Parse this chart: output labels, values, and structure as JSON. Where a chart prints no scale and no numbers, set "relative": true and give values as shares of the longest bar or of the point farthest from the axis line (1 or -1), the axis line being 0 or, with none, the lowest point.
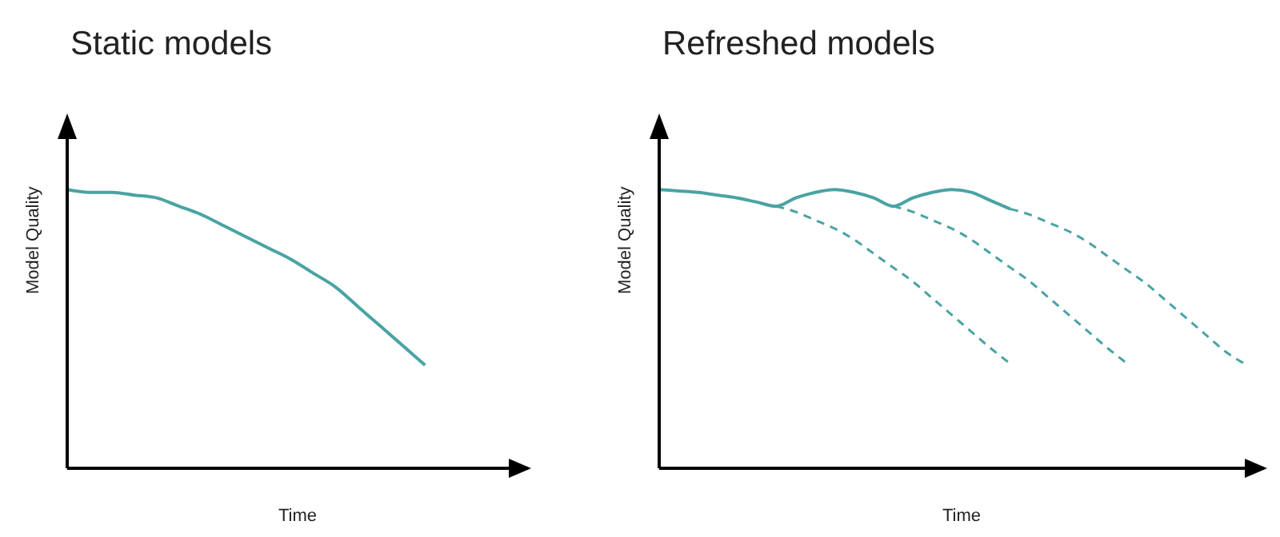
{
  "chart_data": [
    {
      "type": "line",
      "title": "Static models",
      "xlabel": "Time",
      "ylabel": "Model Quality",
      "relative": true,
      "tick_labels": false,
      "grid": false,
      "legend": false,
      "marker": "none",
      "categories": [
        null,
        null,
        null,
        null,
        null,
        null,
        null,
        null,
        null,
        null,
        null,
        null,
        null,
        null,
        null,
        null,
        null,
        null,
        null,
        null,
        null
      ],
      "series": [
        {
          "color": "#4aa3a3",
          "line_style": "solid",
          "values": [
            1.0,
            0.99,
            0.99,
            0.98,
            0.97,
            0.94,
            0.91,
            0.87,
            0.83,
            0.79,
            0.75,
            0.7,
            0.65,
            0.58,
            0.51,
            0.44,
            0.37,
            null,
            null,
            null,
            null
          ]
        }
      ]
    },
    {
      "type": "line",
      "title": "Refreshed models",
      "xlabel": "Time",
      "ylabel": "Model Quality",
      "relative": true,
      "tick_labels": false,
      "grid": false,
      "legend": false,
      "marker": "none",
      "categories": [
        null,
        null,
        null,
        null,
        null,
        null,
        null,
        null,
        null,
        null,
        null,
        null,
        null,
        null,
        null,
        null,
        null,
        null,
        null,
        null,
        null,
        null,
        null,
        null,
        null,
        null,
        null,
        null,
        null,
        null,
        null,
        null
      ],
      "series": [
        {
          "color": "#4aa3a3",
          "line_style": "solid",
          "values": [
            1.0,
            0.995,
            0.99,
            0.98,
            0.97,
            0.955,
            0.94,
            0.97,
            0.99,
            1.0,
            0.99,
            0.97,
            0.94,
            0.97,
            0.99,
            1.0,
            0.99,
            0.96,
            0.93,
            null,
            null,
            null,
            null,
            null,
            null,
            null,
            null,
            null,
            null,
            null,
            null,
            null
          ]
        },
        {
          "color": "#4aa3a3",
          "line_style": "dashed",
          "values": [
            null,
            null,
            null,
            null,
            null,
            null,
            0.94,
            0.92,
            0.89,
            0.86,
            0.82,
            0.77,
            0.72,
            0.67,
            0.61,
            0.55,
            0.49,
            0.43,
            0.375,
            null,
            null,
            null,
            null,
            null,
            null,
            null,
            null,
            null,
            null,
            null,
            null,
            null
          ]
        },
        {
          "color": "#4aa3a3",
          "line_style": "dashed",
          "values": [
            null,
            null,
            null,
            null,
            null,
            null,
            null,
            null,
            null,
            null,
            null,
            null,
            0.94,
            0.92,
            0.89,
            0.86,
            0.82,
            0.77,
            0.72,
            0.67,
            0.61,
            0.55,
            0.49,
            0.43,
            0.375,
            null,
            null,
            null,
            null,
            null,
            null,
            null
          ]
        },
        {
          "color": "#4aa3a3",
          "line_style": "dashed",
          "values": [
            null,
            null,
            null,
            null,
            null,
            null,
            null,
            null,
            null,
            null,
            null,
            null,
            null,
            null,
            null,
            null,
            null,
            null,
            0.93,
            0.91,
            0.88,
            0.85,
            0.81,
            0.76,
            0.71,
            0.66,
            0.6,
            0.54,
            0.48,
            0.42,
            0.375,
            null
          ]
        }
      ]
    }
  ]
}
